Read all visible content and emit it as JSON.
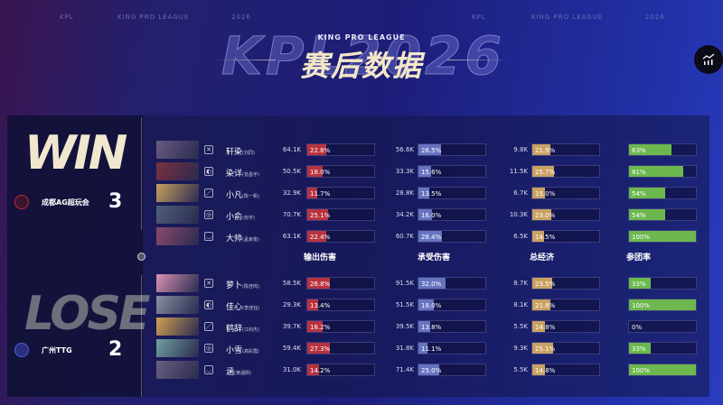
{
  "header": {
    "top_labels": [
      "KPL",
      "KING PRO LEAGUE",
      "2026",
      "KPL",
      "KING PRO LEAGUE",
      "2026"
    ],
    "bg_text": "KPL2026",
    "subtitle": "KING PRO LEAGUE",
    "title": "赛后数据"
  },
  "columns": [
    "输出伤害",
    "承受伤害",
    "总经济",
    "参团率"
  ],
  "colors": {
    "damage": "#b8323f",
    "taken": "#6674c0",
    "economy": "#c9a262",
    "participation": "#6cb84f"
  },
  "winner": {
    "result": "WIN",
    "team": "成都AG超玩会",
    "score": "3",
    "players": [
      {
        "name": "轩染",
        "real": "(刘同)",
        "role": "jungle",
        "dmg": "64.1K",
        "dmg_pct": "22.8%",
        "taken": "56.6K",
        "taken_pct": "26.5%",
        "econ": "9.8K",
        "econ_pct": "21.9%",
        "part": "63%"
      },
      {
        "name": "染详",
        "real": "(曾昌宇)",
        "role": "clash",
        "dmg": "50.5K",
        "dmg_pct": "18.0%",
        "taken": "33.3K",
        "taken_pct": "15.6%",
        "econ": "11.5K",
        "econ_pct": "25.7%",
        "part": "81%"
      },
      {
        "name": "小凡",
        "real": "(陈一帆)",
        "role": "mid",
        "dmg": "32.9K",
        "dmg_pct": "11.7%",
        "taken": "28.8K",
        "taken_pct": "13.5%",
        "econ": "6.7K",
        "econ_pct": "15.0%",
        "part": "54%"
      },
      {
        "name": "小俞",
        "real": "(俞宇)",
        "role": "farm",
        "dmg": "70.7K",
        "dmg_pct": "25.1%",
        "taken": "34.2K",
        "taken_pct": "16.0%",
        "econ": "10.3K",
        "econ_pct": "23.0%",
        "part": "54%"
      },
      {
        "name": "大帅",
        "real": "(孟家俊)",
        "role": "support",
        "dmg": "63.1K",
        "dmg_pct": "22.4%",
        "taken": "60.7K",
        "taken_pct": "28.4%",
        "econ": "6.5K",
        "econ_pct": "14.5%",
        "part": "100%"
      }
    ]
  },
  "loser": {
    "result": "LOSE",
    "team": "广州TTG",
    "score": "2",
    "players": [
      {
        "name": "萝卜",
        "real": "(陈佳鸣)",
        "role": "jungle",
        "dmg": "58.5K",
        "dmg_pct": "26.8%",
        "taken": "91.5K",
        "taken_pct": "32.0%",
        "econ": "8.7K",
        "econ_pct": "23.5%",
        "part": "33%"
      },
      {
        "name": "佳心",
        "real": "(李佳钰)",
        "role": "clash",
        "dmg": "29.3K",
        "dmg_pct": "13.4%",
        "taken": "51.5K",
        "taken_pct": "18.0%",
        "econ": "8.1K",
        "econ_pct": "21.8%",
        "part": "100%"
      },
      {
        "name": "鹤辞",
        "real": "(江利杰)",
        "role": "mid",
        "dmg": "39.7K",
        "dmg_pct": "18.2%",
        "taken": "39.5K",
        "taken_pct": "13.8%",
        "econ": "5.5K",
        "econ_pct": "14.8%",
        "part": "0%"
      },
      {
        "name": "小雪",
        "real": "(高彩霞)",
        "role": "farm",
        "dmg": "59.4K",
        "dmg_pct": "27.3%",
        "taken": "31.8K",
        "taken_pct": "11.1%",
        "econ": "9.3K",
        "econ_pct": "25.1%",
        "part": "33%"
      },
      {
        "name": "涵",
        "real": "(黄涵阳)",
        "role": "support",
        "dmg": "31.0K",
        "dmg_pct": "14.2%",
        "taken": "71.4K",
        "taken_pct": "25.0%",
        "econ": "5.5K",
        "econ_pct": "14.8%",
        "part": "100%"
      }
    ]
  }
}
